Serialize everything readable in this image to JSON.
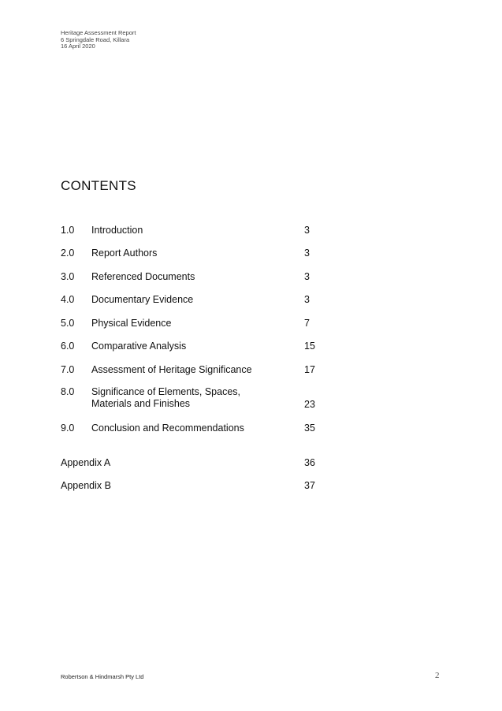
{
  "header": {
    "lines": [
      "Heritage Assessment Report",
      "6 Springdale Road, Killara",
      "16 April 2020"
    ]
  },
  "title": "CONTENTS",
  "entries": [
    {
      "num": "1.0",
      "label": "Introduction",
      "page": "3"
    },
    {
      "num": "2.0",
      "label": "Report Authors",
      "page": "3"
    },
    {
      "num": "3.0",
      "label": "Referenced Documents",
      "page": "3"
    },
    {
      "num": "4.0",
      "label": "Documentary Evidence",
      "page": "3"
    },
    {
      "num": "5.0",
      "label": "Physical Evidence",
      "page": "7"
    },
    {
      "num": "6.0",
      "label": "Comparative Analysis",
      "page": "15"
    },
    {
      "num": "7.0",
      "label": "Assessment of Heritage Significance",
      "page": "17"
    },
    {
      "num": "8.0",
      "label": "Significance of Elements, Spaces, Materials and Finishes",
      "page": "23"
    },
    {
      "num": "9.0",
      "label": "Conclusion and Recommendations",
      "page": "35"
    }
  ],
  "appendices": [
    {
      "label": "Appendix A",
      "page": "36"
    },
    {
      "label": "Appendix B",
      "page": "37"
    }
  ],
  "footer": {
    "company": "Robertson & Hindmarsh Pty Ltd",
    "page_number": "2"
  }
}
